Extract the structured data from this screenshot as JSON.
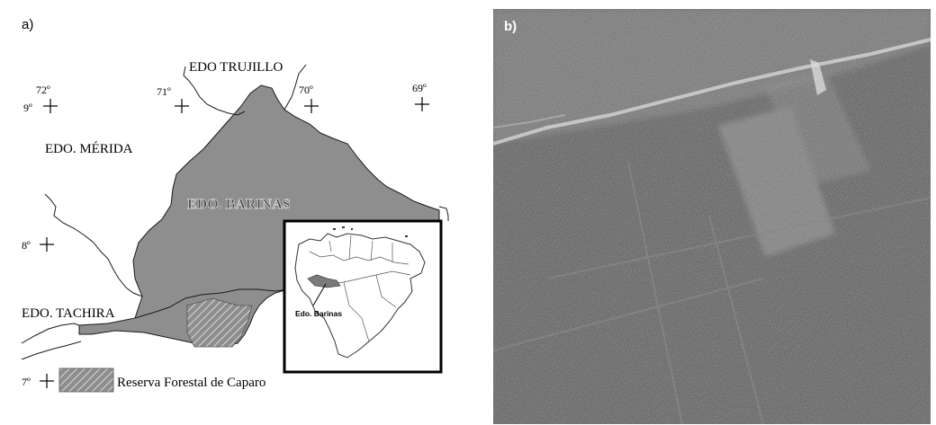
{
  "figure": {
    "panel_a": {
      "label": "a)",
      "map_labels": {
        "trujillo": "EDO TRUJILLO",
        "merida": "EDO. MÉRIDA",
        "barinas": "EDO. BARINAS",
        "tachira": "EDO. TACHIRA"
      },
      "grid_labels": {
        "lon_72": "72º",
        "lon_71": "71º",
        "lon_70": "70º",
        "lon_69": "69º",
        "lat_9": "9º",
        "lat_8": "8º",
        "lat_7": "7º"
      },
      "inset_label": "Edo. Barinas",
      "legend_text": "Reserva Forestal de Caparo",
      "colors": {
        "state_fill": "#8e8e8e",
        "border": "#1a1a1a"
      }
    },
    "panel_b": {
      "label": "b)",
      "colors": {
        "forest": "#5b5b5b",
        "clearing": "#8a8a8a",
        "road": "#d8d8d8"
      }
    }
  }
}
